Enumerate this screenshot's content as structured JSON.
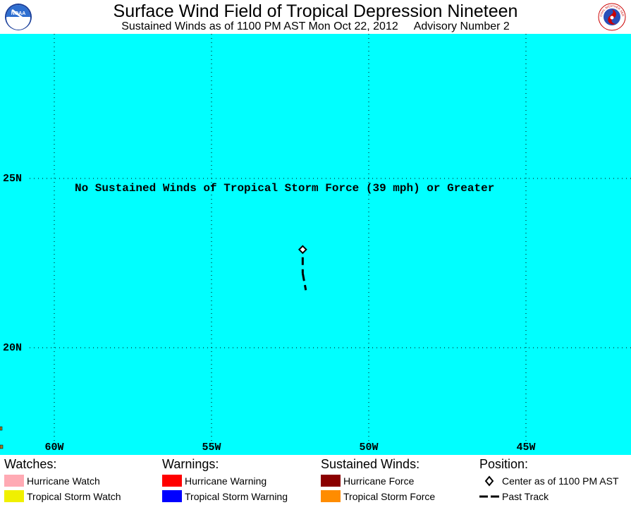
{
  "header": {
    "title": "Surface Wind Field of Tropical Depression Nineteen",
    "subtitle_time": "Sustained Winds as of 1100 PM AST Mon Oct 22, 2012",
    "subtitle_advisory": "Advisory Number 2",
    "logo_left": "NOAA",
    "logo_right_seal": "NATIONAL WEATHER SERVICE"
  },
  "map": {
    "background_color": "#00ffff",
    "grid": true,
    "lat_labels": [
      "25N",
      "20N"
    ],
    "lon_labels": [
      "60W",
      "55W",
      "50W",
      "45W"
    ],
    "notice": "No Sustained Winds of Tropical Storm Force (39 mph) or Greater",
    "storm_center": {
      "lat": 22.9,
      "lon": -52.1
    },
    "past_track": [
      {
        "lat": 22.9,
        "lon": -52.1
      },
      {
        "lat": 22.2,
        "lon": -52.1
      },
      {
        "lat": 21.7,
        "lon": -52.0
      }
    ]
  },
  "legend": {
    "watches": {
      "heading": "Watches:",
      "items": [
        {
          "label": "Hurricane Watch",
          "color": "#ffaab4"
        },
        {
          "label": "Tropical Storm Watch",
          "color": "#f0f000"
        }
      ]
    },
    "warnings": {
      "heading": "Warnings:",
      "items": [
        {
          "label": "Hurricane Warning",
          "color": "#ff0000"
        },
        {
          "label": "Tropical Storm Warning",
          "color": "#0000ff"
        }
      ]
    },
    "winds": {
      "heading": "Sustained Winds:",
      "items": [
        {
          "label": "Hurricane Force",
          "color": "#8b0000"
        },
        {
          "label": "Tropical Storm Force",
          "color": "#ff8c00"
        }
      ]
    },
    "position": {
      "heading": "Position:",
      "items": [
        {
          "label": "Center as of 1100 PM AST",
          "icon": "diamond-icon"
        },
        {
          "label": "Past Track",
          "icon": "dashed-line-icon"
        }
      ]
    }
  }
}
